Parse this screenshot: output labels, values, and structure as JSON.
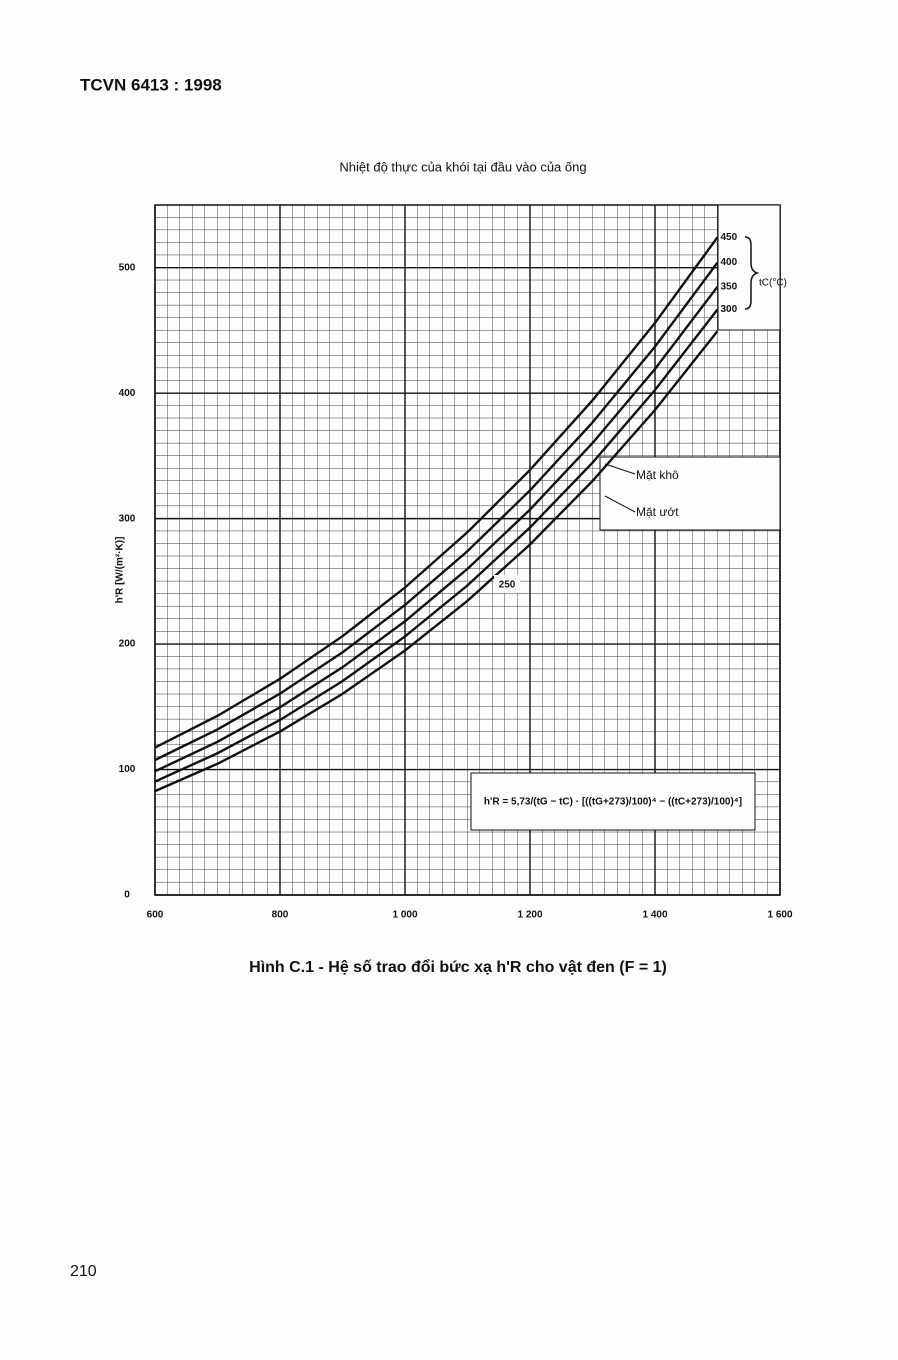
{
  "header": "TCVN 6413 : 1998",
  "caption": "Hình C.1 - Hệ số trao đổi bức xạ h'R cho vật đen (F = 1)",
  "page_number": "210",
  "chart_data": {
    "type": "line",
    "title": "Nhiệt độ thực của khói tại đầu vào của ống",
    "y_label": "h'R [W/(m²·K)]",
    "legend_title": "tC(°C)",
    "annotations": [
      "Mặt khô",
      "Mặt ướt",
      "h'R = 5,73/(tG − tC) · [((tG+273)/100)⁴ − ((tC+273)/100)⁴]"
    ],
    "x": [
      600,
      700,
      800,
      900,
      1000,
      1100,
      1200,
      1300,
      1400,
      1500
    ],
    "series": [
      {
        "name": "450",
        "color": "#111111",
        "values": [
          117.5,
          142.8,
          172.3,
          206.3,
          245.1,
          289.2,
          338.8,
          394.3,
          456.0,
          524.3
        ]
      },
      {
        "name": "400",
        "color": "#111111",
        "values": [
          107.6,
          132.0,
          160.5,
          193.4,
          231.2,
          274.1,
          322.5,
          376.7,
          437.1,
          504.1
        ]
      },
      {
        "name": "350",
        "color": "#111111",
        "values": [
          98.6,
          122.1,
          149.6,
          181.5,
          218.2,
          260.0,
          307.2,
          360.2,
          419.3,
          484.9
        ]
      },
      {
        "name": "300",
        "color": "#111111",
        "values": [
          90.4,
          113.0,
          139.5,
          170.5,
          206.1,
          246.8,
          292.9,
          344.6,
          402.5,
          466.7
        ]
      },
      {
        "name": "250",
        "color": "#111111",
        "values": [
          82.8,
          104.6,
          130.3,
          160.3,
          194.9,
          234.5,
          279.4,
          330.0,
          386.6,
          449.5
        ]
      }
    ],
    "xlim": [
      600,
      1600
    ],
    "xticks": [
      600,
      800,
      {
        "value": 1000,
        "label": "1 000"
      },
      {
        "value": 1200,
        "label": "1 200"
      },
      {
        "value": 1400,
        "label": "1 400"
      },
      {
        "value": 1600,
        "label": "1 600"
      }
    ],
    "ylim": [
      0,
      550
    ],
    "yticks": [
      0,
      100,
      200,
      300,
      400,
      500
    ],
    "grid": true
  }
}
